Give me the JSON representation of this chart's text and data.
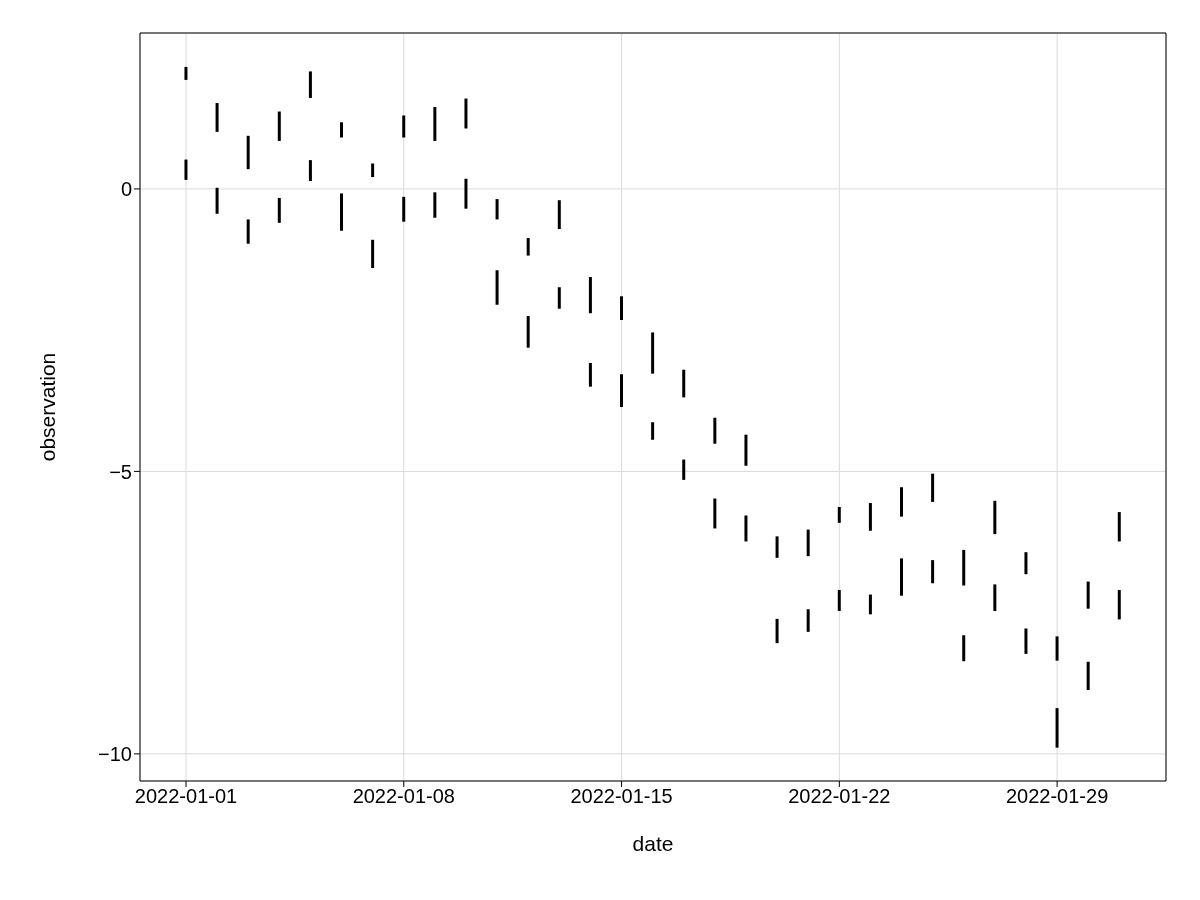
{
  "chart_data": {
    "type": "bar",
    "xlabel": "date",
    "ylabel": "observation",
    "x": [
      "2022-01-01",
      "2022-01-02",
      "2022-01-03",
      "2022-01-04",
      "2022-01-05",
      "2022-01-06",
      "2022-01-07",
      "2022-01-08",
      "2022-01-09",
      "2022-01-10",
      "2022-01-11",
      "2022-01-12",
      "2022-01-13",
      "2022-01-14",
      "2022-01-15",
      "2022-01-16",
      "2022-01-17",
      "2022-01-18",
      "2022-01-19",
      "2022-01-20",
      "2022-01-21",
      "2022-01-22",
      "2022-01-23",
      "2022-01-24",
      "2022-01-25",
      "2022-01-26",
      "2022-01-27",
      "2022-01-28",
      "2022-01-29",
      "2022-01-30",
      "2022-01-31"
    ],
    "series": [
      {
        "color": "#000000",
        "base": [
          1.93,
          1.01,
          0.35,
          0.85,
          1.61,
          0.91,
          0.21,
          0.91,
          0.85,
          1.07,
          -0.54,
          -1.18,
          -0.71,
          -2.2,
          -2.32,
          -3.27,
          -3.69,
          -4.51,
          -4.9,
          -6.53,
          -6.5,
          -5.91,
          -6.05,
          -5.8,
          -5.54,
          -7.02,
          -6.11,
          -6.82,
          -8.35,
          -7.43,
          -6.24
        ],
        "values": [
          0.23,
          0.51,
          0.59,
          0.52,
          0.47,
          0.27,
          0.24,
          0.39,
          0.6,
          0.53,
          0.36,
          0.31,
          0.51,
          0.64,
          0.42,
          0.73,
          0.49,
          0.46,
          0.55,
          0.38,
          0.47,
          0.28,
          0.49,
          0.52,
          0.5,
          0.63,
          0.59,
          0.39,
          0.43,
          0.48,
          0.52
        ]
      },
      {
        "color": "#000000",
        "base": [
          0.16,
          -0.44,
          -0.97,
          -0.6,
          0.14,
          -0.74,
          -1.4,
          -0.58,
          -0.51,
          -0.35,
          -2.05,
          -2.81,
          -2.12,
          -3.5,
          -3.86,
          -4.44,
          -5.15,
          -6.01,
          -6.24,
          -8.04,
          -7.84,
          -7.47,
          -7.53,
          -7.2,
          -6.98,
          -8.36,
          -7.47,
          -8.23,
          -9.89,
          -8.87,
          -7.62
        ],
        "values": [
          0.36,
          0.46,
          0.43,
          0.44,
          0.37,
          0.66,
          0.5,
          0.44,
          0.45,
          0.53,
          0.61,
          0.56,
          0.38,
          0.42,
          0.58,
          0.31,
          0.36,
          0.53,
          0.46,
          0.43,
          0.4,
          0.37,
          0.35,
          0.66,
          0.41,
          0.46,
          0.47,
          0.45,
          0.7,
          0.5,
          0.52
        ]
      }
    ],
    "xlim": [
      "2021-12-30T12:30",
      "2022-02-01T12:00"
    ],
    "xticks": [
      {
        "value": "2022-01-01",
        "label": "2022-01-01"
      },
      {
        "value": "2022-01-08",
        "label": "2022-01-08"
      },
      {
        "value": "2022-01-15",
        "label": "2022-01-15"
      },
      {
        "value": "2022-01-22",
        "label": "2022-01-22"
      },
      {
        "value": "2022-01-29",
        "label": "2022-01-29"
      }
    ],
    "ylim": [
      -10.48,
      2.76
    ],
    "yticks": [
      {
        "value": -10,
        "label": "−10"
      },
      {
        "value": -5,
        "label": "−5"
      },
      0
    ],
    "grid": true,
    "legend": false
  }
}
